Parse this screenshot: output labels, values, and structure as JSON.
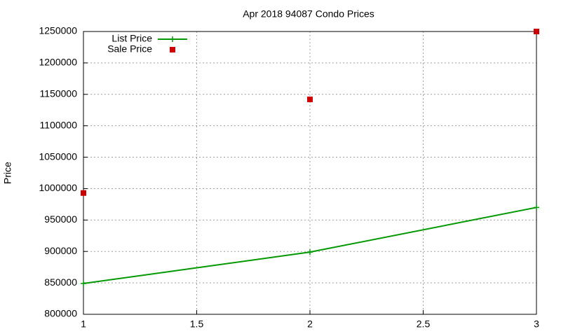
{
  "chart_data": {
    "type": "line",
    "title": "Apr 2018 94087 Condo Prices",
    "y_label": "Price",
    "x": [
      1,
      2,
      3
    ],
    "series": [
      {
        "name": "List Price",
        "color": "#009900",
        "style": "linespoints",
        "values": [
          849000,
          899000,
          970000
        ]
      },
      {
        "name": "Sale Price",
        "color": "#cc0000",
        "style": "points",
        "values": [
          993000,
          1142000,
          1250000
        ]
      }
    ],
    "xlim": [
      1,
      3
    ],
    "xticks": [
      1,
      1.5,
      2,
      2.5,
      3
    ],
    "ylim": [
      800000,
      1250000
    ],
    "yticks": [
      800000,
      850000,
      900000,
      950000,
      1000000,
      1050000,
      1100000,
      1150000,
      1200000,
      1250000
    ],
    "grid": true,
    "legend": "top-left"
  }
}
